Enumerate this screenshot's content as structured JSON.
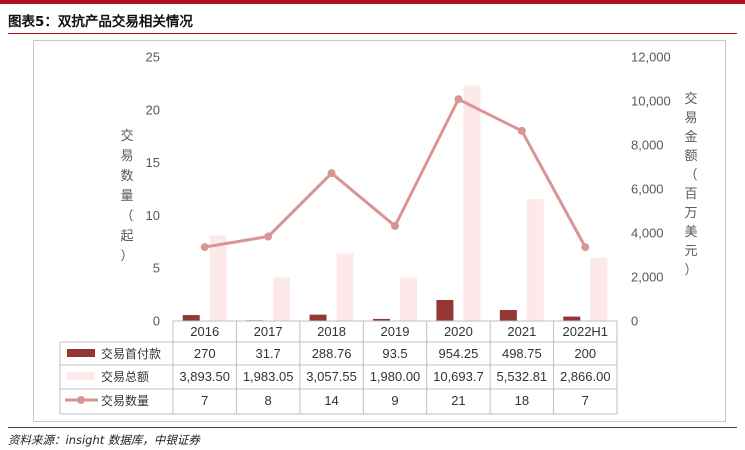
{
  "header": {
    "title": "图表5：双抗产品交易相关情况"
  },
  "footer": {
    "source": "资料来源：insight 数据库，中银证券"
  },
  "colors": {
    "upfront": "#943634",
    "total": "#fde9e9",
    "count": "#d99594",
    "accent": "#b0121b"
  },
  "chart_data": {
    "type": "bar",
    "title": "",
    "categories": [
      "2016",
      "2017",
      "2018",
      "2019",
      "2020",
      "2021",
      "2022H1"
    ],
    "y_left": {
      "label": "交易数量（起）",
      "min": 0,
      "max": 25,
      "ticks": [
        "0",
        "5",
        "10",
        "15",
        "20",
        "25"
      ]
    },
    "y_right": {
      "label": "交易金额（百万美元）",
      "min": 0,
      "max": 12000,
      "ticks": [
        "0",
        "2,000",
        "4,000",
        "6,000",
        "8,000",
        "10,000",
        "12,000"
      ]
    },
    "series": [
      {
        "name": "交易首付款",
        "type": "bar",
        "axis": "right",
        "values": [
          270,
          31.7,
          288.76,
          93.5,
          954.25,
          498.75,
          200
        ],
        "labels": [
          "270",
          "31.7",
          "288.76",
          "93.5",
          "954.25",
          "498.75",
          "200"
        ]
      },
      {
        "name": "交易总额",
        "type": "bar",
        "axis": "right",
        "values": [
          3893.5,
          1983.05,
          3057.55,
          1980.0,
          10693.7,
          5532.81,
          2866.0
        ],
        "labels": [
          "3,893.50",
          "1,983.05",
          "3,057.55",
          "1,980.00",
          "10,693.7",
          "5,532.81",
          "2,866.00"
        ]
      },
      {
        "name": "交易数量",
        "type": "line",
        "axis": "left",
        "values": [
          7,
          8,
          14,
          9,
          21,
          18,
          7
        ],
        "labels": [
          "7",
          "8",
          "14",
          "9",
          "21",
          "18",
          "7"
        ]
      }
    ],
    "grid": false,
    "legend": "data-table"
  }
}
